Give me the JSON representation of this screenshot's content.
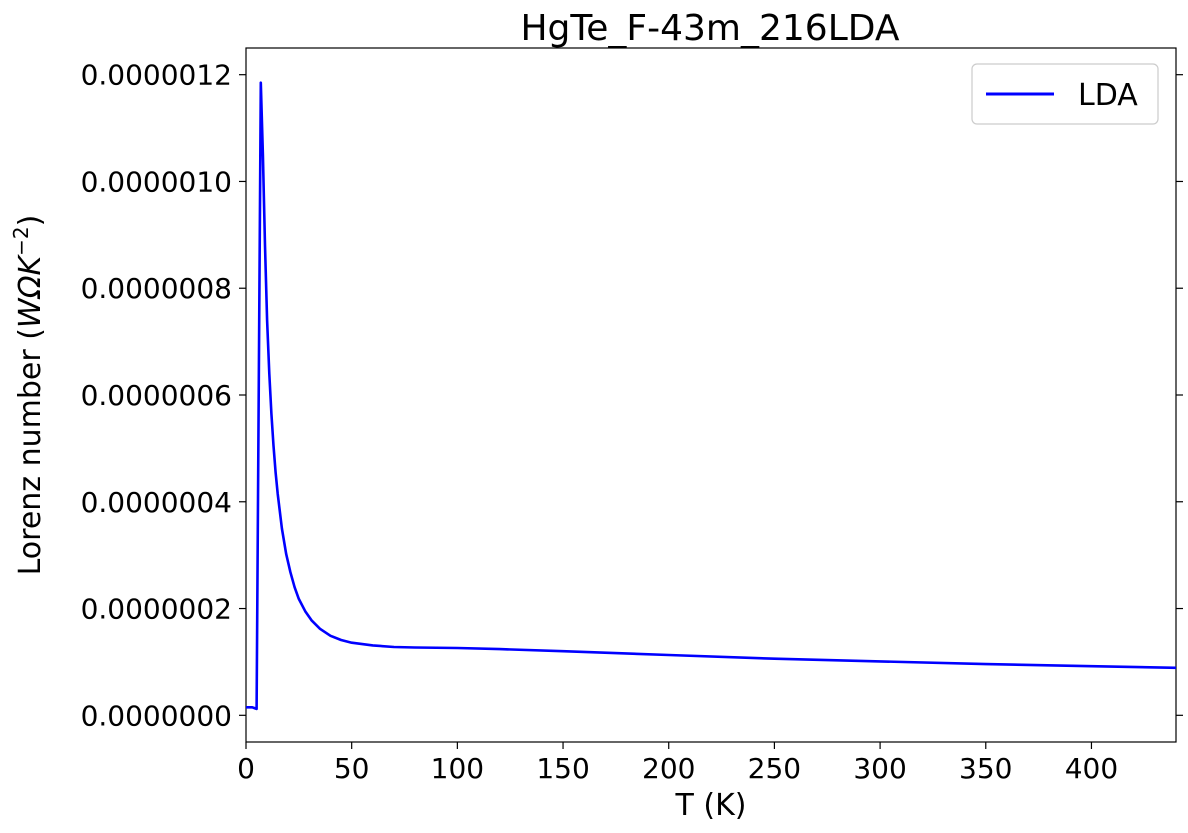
{
  "chart_data": {
    "type": "line",
    "title": "HgTe_F-43m_216LDA",
    "xlabel": "T (K)",
    "ylabel_prefix": "Lorenz number (",
    "ylabel_unit": "WΩK",
    "ylabel_exp": "−2",
    "ylabel_suffix": ")",
    "xlim": [
      0,
      440
    ],
    "ylim": [
      -5e-08,
      1.25e-06
    ],
    "x_ticks": [
      0,
      50,
      100,
      150,
      200,
      250,
      300,
      350,
      400
    ],
    "x_tick_labels": [
      "0",
      "50",
      "100",
      "150",
      "200",
      "250",
      "300",
      "350",
      "400"
    ],
    "y_ticks": [
      0,
      2e-07,
      4e-07,
      6e-07,
      8e-07,
      1e-06,
      1.2e-06
    ],
    "y_tick_labels": [
      "0.0000000",
      "0.0000002",
      "0.0000004",
      "0.0000006",
      "0.0000008",
      "0.0000010",
      "0.0000012"
    ],
    "grid": false,
    "legend_position": "top-right",
    "series": [
      {
        "name": "LDA",
        "color": "#0000ff",
        "x": [
          0,
          3,
          5,
          7,
          8,
          9,
          10,
          11,
          12,
          13,
          14,
          15,
          17,
          19,
          21,
          23,
          25,
          28,
          31,
          35,
          40,
          45,
          50,
          60,
          70,
          80,
          100,
          120,
          150,
          200,
          250,
          300,
          350,
          400,
          440
        ],
        "y": [
          1.5e-08,
          1.5e-08,
          1.2e-08,
          1.185e-06,
          1.05e-06,
          8.8e-07,
          7.4e-07,
          6.4e-07,
          5.65e-07,
          5.05e-07,
          4.55e-07,
          4.15e-07,
          3.5e-07,
          3.02e-07,
          2.68e-07,
          2.4e-07,
          2.18e-07,
          1.95e-07,
          1.78e-07,
          1.62e-07,
          1.49e-07,
          1.41e-07,
          1.36e-07,
          1.31e-07,
          1.28e-07,
          1.27e-07,
          1.26e-07,
          1.24e-07,
          1.2e-07,
          1.13e-07,
          1.06e-07,
          1.01e-07,
          9.6e-08,
          9.2e-08,
          8.9e-08
        ]
      }
    ]
  }
}
